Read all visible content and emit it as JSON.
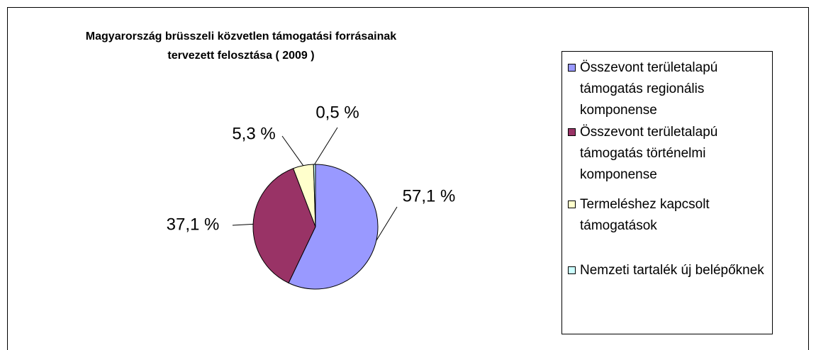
{
  "chart_data": {
    "type": "pie",
    "title": "Magyarország brüsszeli közvetlen támogatási forrásainak tervezett felosztása ( 2009 )",
    "categories": [
      "Összevont területalapú támogatás regionális komponense",
      "Összevont területalapú támogatás történelmi komponense",
      "Termeléshez kapcsolt támogatások",
      "Nemzeti tartalék új belépőknek"
    ],
    "values": [
      57.1,
      37.1,
      5.3,
      0.5
    ],
    "value_labels": [
      "57,1 %",
      "37,1 %",
      "5,3 %",
      "0,5 %"
    ],
    "colors": [
      "#9999ff",
      "#993366",
      "#ffffcc",
      "#ccffff"
    ],
    "legend": "right"
  }
}
